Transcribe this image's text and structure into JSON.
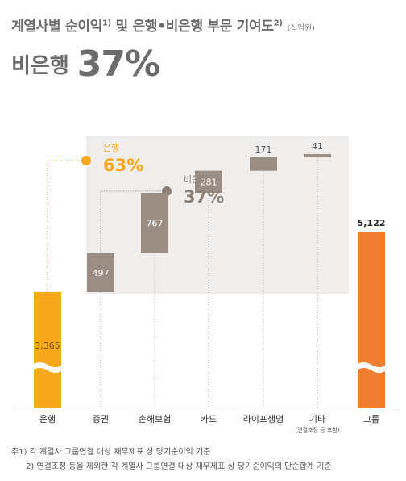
{
  "header": {
    "title_prefix": "계열사별 순이익",
    "title_sup1": "1)",
    "title_middle": " 및 은행•비은행 부문 기여도",
    "title_sup2": "2)",
    "unit": "(십억원)"
  },
  "headline": {
    "label": "비은행",
    "value": "37%"
  },
  "callouts": {
    "bank": {
      "label": "은행",
      "value": "63%"
    },
    "nonbank": {
      "label": "비은행",
      "value": "37%"
    }
  },
  "colors": {
    "bank": "#f7a81b",
    "nonbank": "#9a8e84",
    "total": "#ef7d30",
    "band": "#efeeed",
    "axis": "#999999"
  },
  "chart_data": {
    "type": "bar",
    "subtype": "waterfall",
    "categories": [
      "은행",
      "증권",
      "손해보험",
      "카드",
      "라이프생명",
      "기타",
      "그룹"
    ],
    "category_sublabels": [
      "",
      "",
      "",
      "",
      "",
      "(연결조정 등 포함)",
      ""
    ],
    "values": [
      3365,
      497,
      767,
      281,
      171,
      41,
      5122
    ],
    "value_labels": [
      "3,365",
      "497",
      "767",
      "281",
      "171",
      "41",
      "5,122"
    ],
    "segments": [
      "bank",
      "nonbank",
      "nonbank",
      "nonbank",
      "nonbank",
      "nonbank",
      "total"
    ],
    "axis_break": true,
    "grid": false,
    "shares": {
      "은행": "63%",
      "비은행": "37%"
    }
  },
  "footnotes": [
    "주1) 각 계열사 그룹연결 대상 재무제표 상 당기순이익 기준",
    "2) 연결조정 등을 제외한 각 계열사 그룹연결 대상 재무제표 상 당기순이익의 단순합계 기준"
  ]
}
